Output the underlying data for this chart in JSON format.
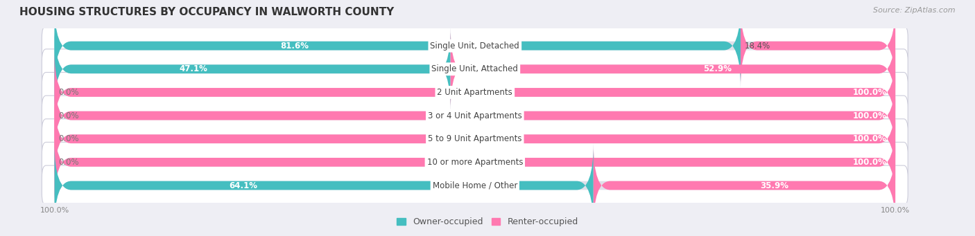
{
  "title": "HOUSING STRUCTURES BY OCCUPANCY IN WALWORTH COUNTY",
  "source": "Source: ZipAtlas.com",
  "categories": [
    "Single Unit, Detached",
    "Single Unit, Attached",
    "2 Unit Apartments",
    "3 or 4 Unit Apartments",
    "5 to 9 Unit Apartments",
    "10 or more Apartments",
    "Mobile Home / Other"
  ],
  "owner_pct": [
    81.6,
    47.1,
    0.0,
    0.0,
    0.0,
    0.0,
    64.1
  ],
  "renter_pct": [
    18.4,
    52.9,
    100.0,
    100.0,
    100.0,
    100.0,
    35.9
  ],
  "owner_color": "#45bec0",
  "renter_color": "#ff79b0",
  "bg_color": "#eeeef4",
  "row_bg_color": "#ffffff",
  "track_color": "#e0e0ea",
  "title_fontsize": 11,
  "source_fontsize": 8,
  "bar_label_fontsize": 8.5,
  "category_label_fontsize": 8.5,
  "legend_fontsize": 9,
  "axis_tick_fontsize": 8,
  "figsize": [
    14.06,
    3.41
  ],
  "dpi": 100
}
